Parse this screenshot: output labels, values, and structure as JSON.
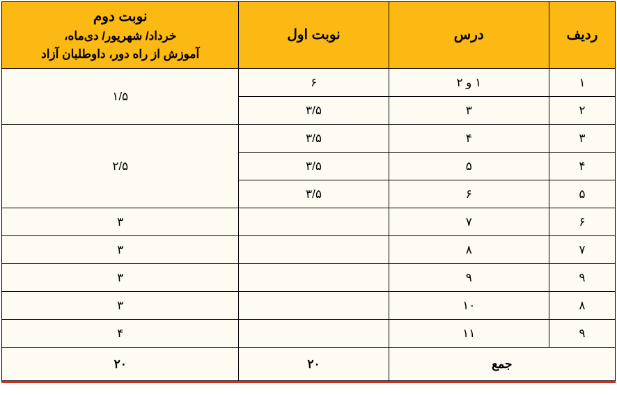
{
  "table": {
    "header_bg": "#fcb813",
    "body_bg": "#fefbf3",
    "border_color": "#000000",
    "accent_color": "#d9291c",
    "headers": {
      "radif": "ردیف",
      "dars": "درس",
      "nob1": "نوبت اول",
      "nob2_main": "نوبت دوم",
      "nob2_sub1": "خرداد/ شهریور/ دی‌ماه،",
      "nob2_sub2": "آموزش از راه دور، داوطلبان آزاد"
    },
    "rows": {
      "r1": {
        "radif": "۱",
        "dars": "۱ و ۲",
        "nob1": "۶",
        "nob2": "۱/۵"
      },
      "r2": {
        "radif": "۲",
        "dars": "۳",
        "nob1": "۳/۵"
      },
      "r3": {
        "radif": "۳",
        "dars": "۴",
        "nob1": "۳/۵",
        "nob2": "۲/۵"
      },
      "r4": {
        "radif": "۴",
        "dars": "۵",
        "nob1": "۳/۵"
      },
      "r5": {
        "radif": "۵",
        "dars": "۶",
        "nob1": "۳/۵"
      },
      "r6": {
        "radif": "۶",
        "dars": "۷",
        "nob1": "",
        "nob2": "۳"
      },
      "r7": {
        "radif": "۷",
        "dars": "۸",
        "nob1": "",
        "nob2": "۳"
      },
      "r8": {
        "radif": "۹",
        "dars": "۹",
        "nob1": "",
        "nob2": "۳"
      },
      "r9": {
        "radif": "۸",
        "dars": "۱۰",
        "nob1": "",
        "nob2": "۳"
      },
      "r10": {
        "radif": "۹",
        "dars": "۱۱",
        "nob1": "",
        "nob2": "۴"
      }
    },
    "sum": {
      "label": "جمع",
      "nob1": "۲۰",
      "nob2": "۲۰"
    }
  }
}
